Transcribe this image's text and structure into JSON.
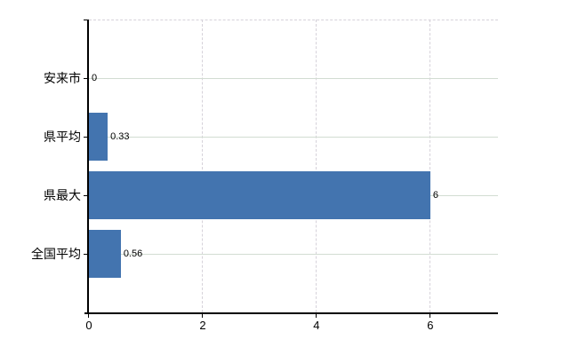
{
  "chart_data": {
    "type": "bar",
    "orientation": "horizontal",
    "title": "",
    "xlabel": "",
    "ylabel": "",
    "categories": [
      "安来市",
      "県平均",
      "県最大",
      "全国平均"
    ],
    "values": [
      0,
      0.33,
      6,
      0.56
    ],
    "value_labels": [
      "0",
      "0.33",
      "6",
      "0.56"
    ],
    "x_ticks": [
      0,
      2,
      4,
      6
    ],
    "x_tick_labels": [
      "0",
      "2",
      "4",
      "6"
    ],
    "xlim": [
      0,
      7.19
    ],
    "grid": true,
    "legend": false,
    "colors": {
      "bar": "#4374af",
      "axis": "#000000",
      "horizontal_grid": "#d2dcd2",
      "vertical_grid": "#d6d2da",
      "text": "#000000",
      "background": "#ffffff"
    }
  }
}
